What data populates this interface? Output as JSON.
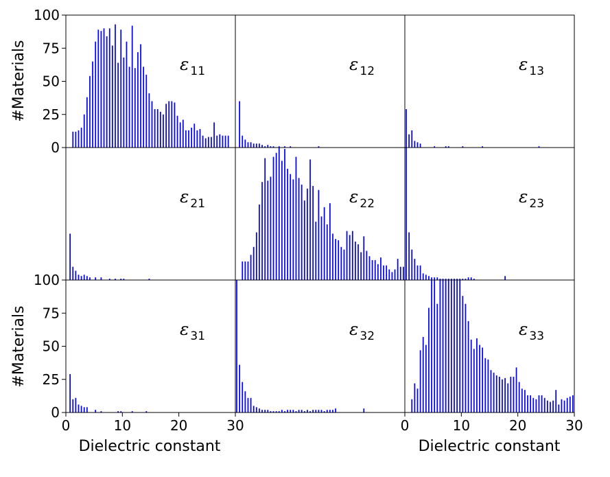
{
  "chart_data": {
    "type": "bar",
    "layout": "3x3 grid",
    "xlabel": "Dielectric constant",
    "ylabel": "#Materials",
    "xlim": [
      0,
      30
    ],
    "ylim": [
      0,
      100
    ],
    "x_ticks": [
      "0",
      "10",
      "20",
      "30"
    ],
    "y_ticks": [
      "0",
      "25",
      "50",
      "75",
      "100"
    ],
    "bar_color": "#0000ff",
    "grid": false,
    "bin_width": 0.5,
    "panels": [
      {
        "row": 1,
        "col": 1,
        "symbol": "ε",
        "subscript": "11",
        "values": [
          0,
          0,
          12,
          12,
          13,
          15,
          25,
          38,
          54,
          65,
          80,
          89,
          88,
          90,
          84,
          90,
          77,
          93,
          64,
          89,
          68,
          80,
          61,
          92,
          60,
          72,
          78,
          61,
          55,
          41,
          35,
          29,
          29,
          27,
          25,
          33,
          35,
          35,
          34,
          24,
          19,
          21,
          13,
          13,
          15,
          18,
          13,
          14,
          9,
          7,
          8,
          8,
          19,
          9,
          10,
          9,
          9,
          9,
          0,
          0
        ]
      },
      {
        "row": 1,
        "col": 2,
        "symbol": "ε",
        "subscript": "12",
        "values": [
          0,
          35,
          9,
          6,
          4,
          4,
          3,
          3,
          3,
          2,
          1,
          2,
          1,
          1,
          0,
          1,
          0,
          1,
          0,
          1,
          0,
          0,
          0,
          0,
          0,
          0,
          0,
          0,
          0,
          1,
          0,
          0,
          0,
          0,
          0,
          0,
          0,
          0,
          0,
          0,
          0,
          0,
          0,
          0,
          0,
          0,
          0,
          0,
          0,
          0,
          0,
          0,
          0,
          0,
          0,
          0,
          0,
          0,
          0,
          0
        ]
      },
      {
        "row": 1,
        "col": 3,
        "symbol": "ε",
        "subscript": "13",
        "values": [
          29,
          10,
          13,
          5,
          4,
          3,
          0,
          0,
          0,
          0,
          1,
          0,
          0,
          0,
          1,
          1,
          0,
          0,
          0,
          0,
          1,
          0,
          0,
          0,
          0,
          0,
          0,
          1,
          0,
          0,
          0,
          0,
          0,
          0,
          0,
          0,
          0,
          0,
          0,
          0,
          0,
          0,
          0,
          0,
          0,
          0,
          0,
          1,
          0,
          0,
          0,
          0,
          0,
          0,
          0,
          0,
          0,
          0,
          0,
          0
        ]
      },
      {
        "row": 2,
        "col": 1,
        "symbol": "ε",
        "subscript": "21",
        "values": [
          0,
          35,
          10,
          7,
          4,
          3,
          4,
          3,
          2,
          0,
          2,
          0,
          2,
          0,
          0,
          1,
          0,
          1,
          0,
          1,
          1,
          0,
          0,
          0,
          0,
          0,
          0,
          0,
          0,
          1,
          0,
          0,
          0,
          0,
          0,
          0,
          0,
          0,
          0,
          0,
          0,
          0,
          0,
          0,
          0,
          0,
          0,
          0,
          0,
          0,
          0,
          0,
          0,
          0,
          0,
          0,
          0,
          0,
          0,
          0
        ]
      },
      {
        "row": 2,
        "col": 2,
        "symbol": "ε",
        "subscript": "22",
        "values": [
          0,
          0,
          14,
          14,
          14,
          19,
          25,
          36,
          57,
          74,
          92,
          75,
          78,
          93,
          96,
          100,
          90,
          99,
          84,
          80,
          76,
          93,
          77,
          72,
          60,
          69,
          91,
          71,
          44,
          68,
          48,
          55,
          42,
          58,
          35,
          31,
          30,
          25,
          23,
          37,
          34,
          37,
          29,
          27,
          21,
          33,
          22,
          18,
          15,
          15,
          12,
          17,
          11,
          11,
          8,
          6,
          8,
          16,
          10,
          10
        ]
      },
      {
        "row": 2,
        "col": 3,
        "symbol": "ε",
        "subscript": "23",
        "values": [
          100,
          36,
          23,
          16,
          11,
          11,
          5,
          4,
          3,
          2,
          2,
          2,
          1,
          1,
          1,
          1,
          1,
          1,
          1,
          1,
          1,
          1,
          2,
          2,
          1,
          0,
          0,
          0,
          0,
          0,
          0,
          0,
          0,
          0,
          0,
          3,
          0,
          0,
          0,
          0,
          0,
          0,
          0,
          0,
          0,
          0,
          0,
          0,
          0,
          0,
          0,
          0,
          0,
          0,
          0,
          0,
          0,
          0,
          0,
          0
        ]
      },
      {
        "row": 3,
        "col": 1,
        "symbol": "ε",
        "subscript": "31",
        "values": [
          0,
          29,
          10,
          11,
          6,
          5,
          4,
          4,
          0,
          0,
          2,
          0,
          1,
          0,
          0,
          0,
          0,
          0,
          1,
          1,
          0,
          0,
          0,
          1,
          0,
          0,
          0,
          0,
          1,
          0,
          0,
          0,
          0,
          0,
          0,
          0,
          0,
          0,
          0,
          0,
          0,
          0,
          0,
          0,
          0,
          0,
          0,
          0,
          0,
          0,
          0,
          0,
          0,
          0,
          0,
          0,
          0,
          0,
          0,
          0
        ]
      },
      {
        "row": 3,
        "col": 2,
        "symbol": "ε",
        "subscript": "32",
        "values": [
          100,
          36,
          23,
          16,
          11,
          11,
          5,
          4,
          3,
          2,
          2,
          2,
          1,
          1,
          1,
          1,
          2,
          1,
          2,
          2,
          2,
          1,
          2,
          2,
          1,
          2,
          1,
          2,
          2,
          2,
          2,
          1,
          2,
          2,
          2,
          3,
          0,
          0,
          0,
          0,
          0,
          0,
          0,
          0,
          0,
          3,
          0,
          0,
          0,
          0,
          0,
          0,
          0,
          0,
          0,
          0,
          0,
          0,
          0,
          0
        ]
      },
      {
        "row": 3,
        "col": 3,
        "symbol": "ε",
        "subscript": "33",
        "values": [
          0,
          0,
          10,
          22,
          18,
          47,
          57,
          51,
          79,
          100,
          104,
          82,
          103,
          100,
          102,
          103,
          100,
          104,
          102,
          100,
          88,
          82,
          69,
          55,
          48,
          56,
          51,
          49,
          41,
          40,
          32,
          30,
          28,
          27,
          25,
          26,
          22,
          27,
          27,
          34,
          23,
          18,
          17,
          13,
          13,
          11,
          10,
          13,
          13,
          11,
          9,
          8,
          9,
          17,
          6,
          10,
          9,
          11,
          12,
          13
        ]
      }
    ]
  }
}
